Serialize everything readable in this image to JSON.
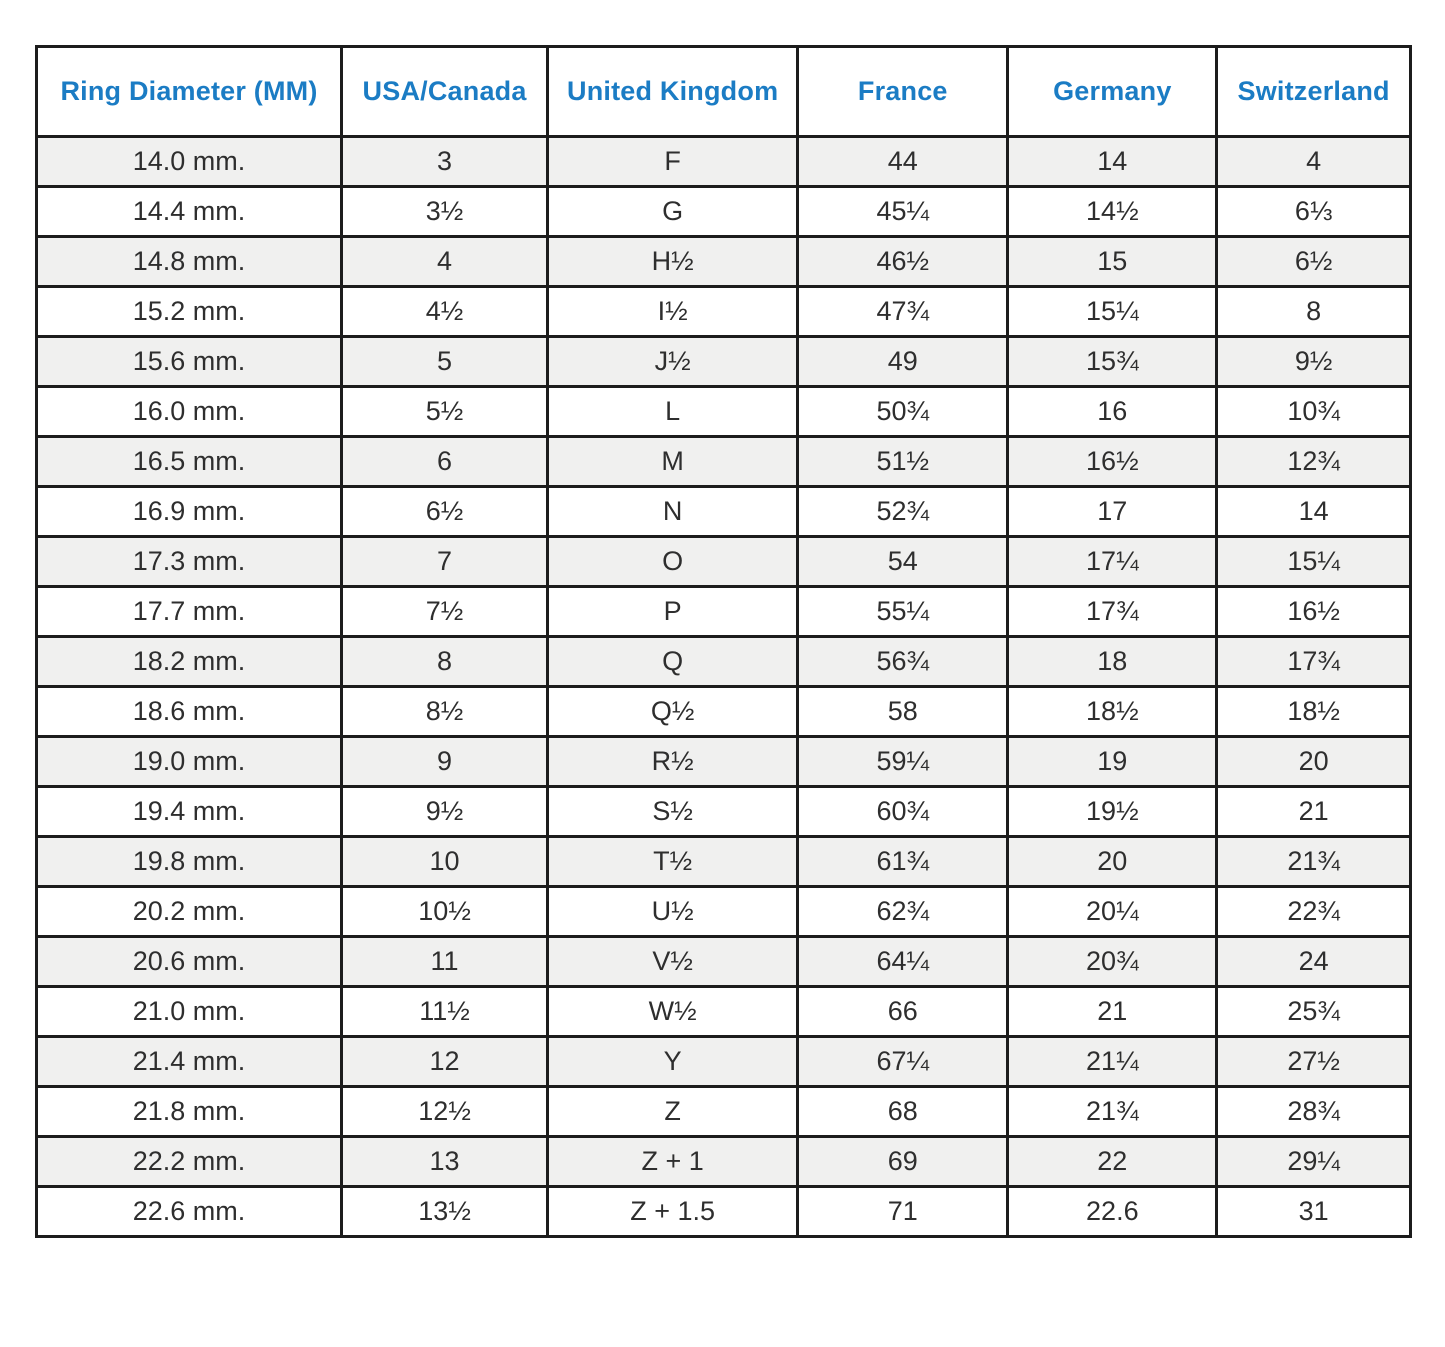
{
  "colors": {
    "header_text": "#1b7cc4",
    "row_stripe": "#f0f0ef",
    "border": "#1c1c1c",
    "cell_text": "#2e2e2e"
  },
  "chart_data": {
    "type": "table",
    "columns": [
      "Ring Diameter (MM)",
      "USA/Canada",
      "United Kingdom",
      "France",
      "Germany",
      "Switzerland"
    ],
    "rows": [
      [
        "14.0 mm.",
        "3",
        "F",
        "44",
        "14",
        "4"
      ],
      [
        "14.4 mm.",
        "3½",
        "G",
        "45¼",
        "14½",
        "6⅓"
      ],
      [
        "14.8 mm.",
        "4",
        "H½",
        "46½",
        "15",
        "6½"
      ],
      [
        "15.2 mm.",
        "4½",
        "I½",
        "47¾",
        "15¼",
        "8"
      ],
      [
        "15.6 mm.",
        "5",
        "J½",
        "49",
        "15¾",
        "9½"
      ],
      [
        "16.0 mm.",
        "5½",
        "L",
        "50¾",
        "16",
        "10¾"
      ],
      [
        "16.5 mm.",
        "6",
        "M",
        "51½",
        "16½",
        "12¾"
      ],
      [
        "16.9 mm.",
        "6½",
        "N",
        "52¾",
        "17",
        "14"
      ],
      [
        "17.3 mm.",
        "7",
        "O",
        "54",
        "17¼",
        "15¼"
      ],
      [
        "17.7 mm.",
        "7½",
        "P",
        "55¼",
        "17¾",
        "16½"
      ],
      [
        "18.2 mm.",
        "8",
        "Q",
        "56¾",
        "18",
        "17¾"
      ],
      [
        "18.6 mm.",
        "8½",
        "Q½",
        "58",
        "18½",
        "18½"
      ],
      [
        "19.0 mm.",
        "9",
        "R½",
        "59¼",
        "19",
        "20"
      ],
      [
        "19.4 mm.",
        "9½",
        "S½",
        "60¾",
        "19½",
        "21"
      ],
      [
        "19.8 mm.",
        "10",
        "T½",
        "61¾",
        "20",
        "21¾"
      ],
      [
        "20.2 mm.",
        "10½",
        "U½",
        "62¾",
        "20¼",
        "22¾"
      ],
      [
        "20.6 mm.",
        "11",
        "V½",
        "64¼",
        "20¾",
        "24"
      ],
      [
        "21.0 mm.",
        "11½",
        "W½",
        "66",
        "21",
        "25¾"
      ],
      [
        "21.4 mm.",
        "12",
        "Y",
        "67¼",
        "21¼",
        "27½"
      ],
      [
        "21.8 mm.",
        "12½",
        "Z",
        "68",
        "21¾",
        "28¾"
      ],
      [
        "22.2 mm.",
        "13",
        "Z + 1",
        "69",
        "22",
        "29¼"
      ],
      [
        "22.6 mm.",
        "13½",
        "Z + 1.5",
        "71",
        "22.6",
        "31"
      ]
    ]
  }
}
